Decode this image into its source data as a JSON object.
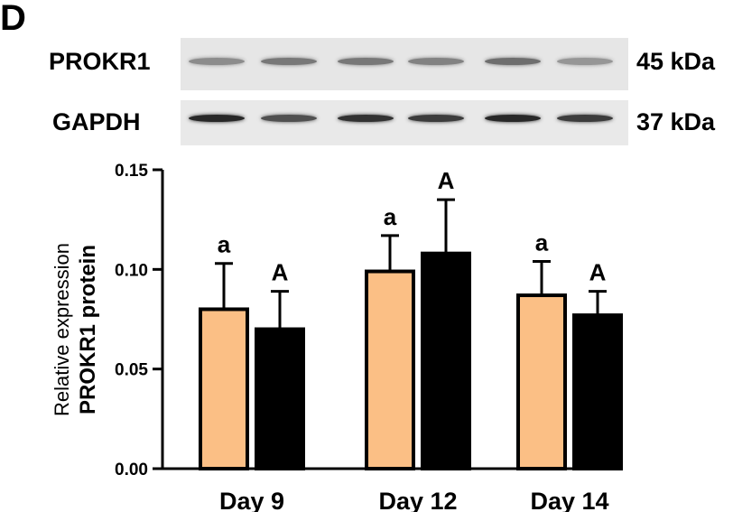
{
  "panel_label": "D",
  "blots": {
    "top": {
      "protein": "PROKR1",
      "size": "45 kDa",
      "band_intensity": [
        0.45,
        0.55,
        0.55,
        0.5,
        0.6,
        0.4
      ]
    },
    "bottom": {
      "protein": "GAPDH",
      "size": "37 kDa",
      "band_intensity": [
        0.95,
        0.75,
        0.9,
        0.85,
        0.95,
        0.85
      ]
    }
  },
  "colors": {
    "series_1": "#fbbf85",
    "series_2": "#000000",
    "axis": "#000000",
    "blot_bg": "#e6e6e6"
  },
  "chart_data": {
    "type": "bar",
    "categories": [
      "Day 9",
      "Day 12",
      "Day 14"
    ],
    "series": [
      {
        "values": [
          0.08,
          0.099,
          0.087
        ],
        "errors": [
          0.023,
          0.018,
          0.017
        ],
        "letters": [
          "a",
          "a",
          "a"
        ]
      },
      {
        "values": [
          0.07,
          0.108,
          0.077
        ],
        "errors": [
          0.019,
          0.027,
          0.012
        ],
        "letters": [
          "A",
          "A",
          "A"
        ]
      }
    ],
    "ylabel_line1": "Relative expression",
    "ylabel_line2": "PROKR1 protein",
    "ylim": [
      0,
      0.15
    ],
    "yticks": [
      "0.00",
      "0.05",
      "0.10",
      "0.15"
    ],
    "grid": false
  }
}
